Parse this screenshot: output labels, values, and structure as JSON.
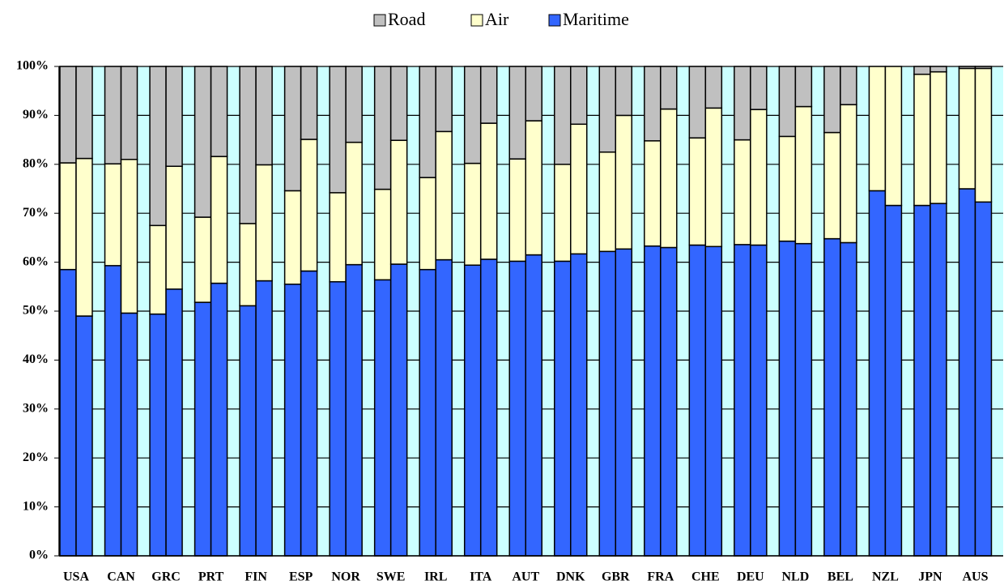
{
  "chart_data": {
    "type": "stacked_bar",
    "categories": [
      "USA",
      null,
      "CAN",
      null,
      "GRC",
      null,
      "PRT",
      null,
      "FIN",
      null,
      "ESP",
      null,
      "NOR",
      null,
      "SWE",
      null,
      "IRL",
      null,
      "ITA",
      null,
      "AUT",
      null,
      "DNK",
      null,
      "GBR",
      null,
      "FRA",
      null,
      "CHE",
      null,
      "DEU",
      null,
      "NLD",
      null,
      "BEL",
      null,
      "NZL",
      null,
      "JPN",
      null,
      "AUS",
      null
    ],
    "series": [
      {
        "name": "Road",
        "color": "#c0c0c0",
        "values": [
          19.7,
          18.8,
          19.9,
          19,
          32.5,
          20.4,
          30.8,
          18.4,
          32.1,
          20.1,
          25.4,
          14.9,
          25.8,
          15.5,
          25.1,
          15.1,
          22.7,
          13.3,
          19.8,
          11.6,
          18.9,
          11.1,
          20,
          11.8,
          17.5,
          10,
          15.2,
          8.7,
          14.6,
          8.5,
          15,
          8.8,
          14.3,
          8.2,
          13.5,
          7.8,
          0,
          0,
          1.6,
          1.1,
          0.4,
          0.4
        ]
      },
      {
        "name": "Air",
        "color": "#ffffcc",
        "values": [
          21.8,
          32.2,
          20.8,
          31.4,
          18.1,
          25.1,
          17.4,
          25.9,
          16.8,
          23.7,
          19.1,
          26.9,
          18.2,
          25,
          18.5,
          25.3,
          18.8,
          26.2,
          20.8,
          27.8,
          20.9,
          27.4,
          19.8,
          26.5,
          20.3,
          27.3,
          21.5,
          28.3,
          21.9,
          28.3,
          21.4,
          27.7,
          21.4,
          28,
          21.7,
          28.2,
          25.4,
          28.4,
          26.8,
          26.9,
          24.6,
          27.3
        ]
      },
      {
        "name": "Maritime",
        "color": "#3366ff",
        "values": [
          58.5,
          49,
          59.3,
          49.6,
          49.4,
          54.5,
          51.8,
          55.7,
          51.1,
          56.2,
          55.5,
          58.2,
          56,
          59.5,
          56.4,
          59.6,
          58.5,
          60.5,
          59.4,
          60.6,
          60.2,
          61.5,
          60.2,
          61.7,
          62.2,
          62.7,
          63.3,
          63,
          63.5,
          63.2,
          63.6,
          63.5,
          64.3,
          63.8,
          64.8,
          64,
          74.6,
          71.6,
          71.6,
          72,
          75,
          72.3
        ]
      }
    ],
    "ylim": [
      0,
      100
    ],
    "yticks": [
      {
        "value": 0,
        "label": "0%"
      },
      {
        "value": 10,
        "label": "10%"
      },
      {
        "value": 20,
        "label": "20%"
      },
      {
        "value": 30,
        "label": "30%"
      },
      {
        "value": 40,
        "label": "40%"
      },
      {
        "value": 50,
        "label": "50%"
      },
      {
        "value": 60,
        "label": "60%"
      },
      {
        "value": 70,
        "label": "70%"
      },
      {
        "value": 80,
        "label": "80%"
      },
      {
        "value": 90,
        "label": "90%"
      },
      {
        "value": 100,
        "label": "100%"
      }
    ],
    "grid": true,
    "plot_background": "#ccffff",
    "legend": "top"
  }
}
